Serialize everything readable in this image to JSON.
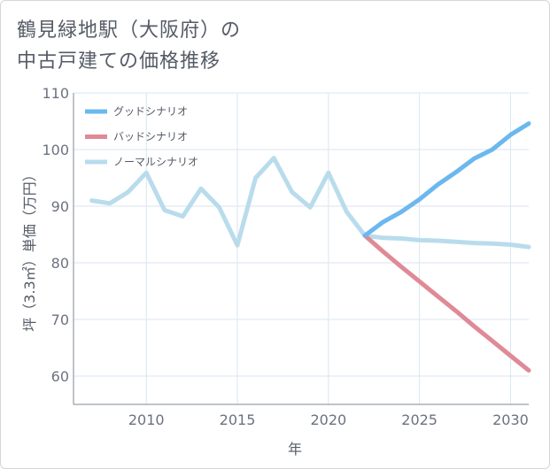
{
  "title_line1": "鶴見緑地駅（大阪府）の",
  "title_line2": "中古戸建ての価格推移",
  "chart_data": {
    "type": "line",
    "title": "鶴見緑地駅（大阪府）の 中古戸建ての価格推移",
    "xlabel": "年",
    "ylabel": "坪（3.3㎡）単価（万円）",
    "xlim": [
      2006,
      2031
    ],
    "ylim": [
      55,
      110
    ],
    "x_ticks": [
      2010,
      2015,
      2020,
      2025,
      2030
    ],
    "y_ticks": [
      60,
      70,
      80,
      90,
      100,
      110
    ],
    "grid": true,
    "legend_position": "top-left",
    "series": [
      {
        "name": "グッドシナリオ",
        "color": "#6cb8ee",
        "x": [
          2022,
          2023,
          2024,
          2025,
          2026,
          2027,
          2028,
          2029,
          2030,
          2031
        ],
        "y": [
          84.8,
          87.2,
          89.0,
          91.2,
          93.8,
          96.0,
          98.4,
          100.0,
          102.6,
          104.6
        ]
      },
      {
        "name": "バッドシナリオ",
        "color": "#df8a96",
        "x": [
          2022,
          2023,
          2024,
          2025,
          2026,
          2027,
          2028,
          2029,
          2030,
          2031
        ],
        "y": [
          84.8,
          82.0,
          79.3,
          76.7,
          74.1,
          71.5,
          68.8,
          66.2,
          63.6,
          61.0
        ]
      },
      {
        "name": "ノーマルシナリオ",
        "color": "#b9dcec",
        "x": [
          2007,
          2008,
          2009,
          2010,
          2011,
          2012,
          2013,
          2014,
          2015,
          2016,
          2017,
          2018,
          2019,
          2020,
          2021,
          2022,
          2023,
          2024,
          2025,
          2026,
          2027,
          2028,
          2029,
          2030,
          2031
        ],
        "y": [
          91.0,
          90.5,
          92.5,
          95.9,
          89.3,
          88.2,
          93.1,
          89.8,
          83.1,
          95.0,
          98.5,
          92.5,
          89.8,
          95.9,
          89.0,
          84.8,
          84.4,
          84.3,
          84.0,
          83.9,
          83.7,
          83.5,
          83.4,
          83.2,
          82.8
        ]
      }
    ]
  }
}
